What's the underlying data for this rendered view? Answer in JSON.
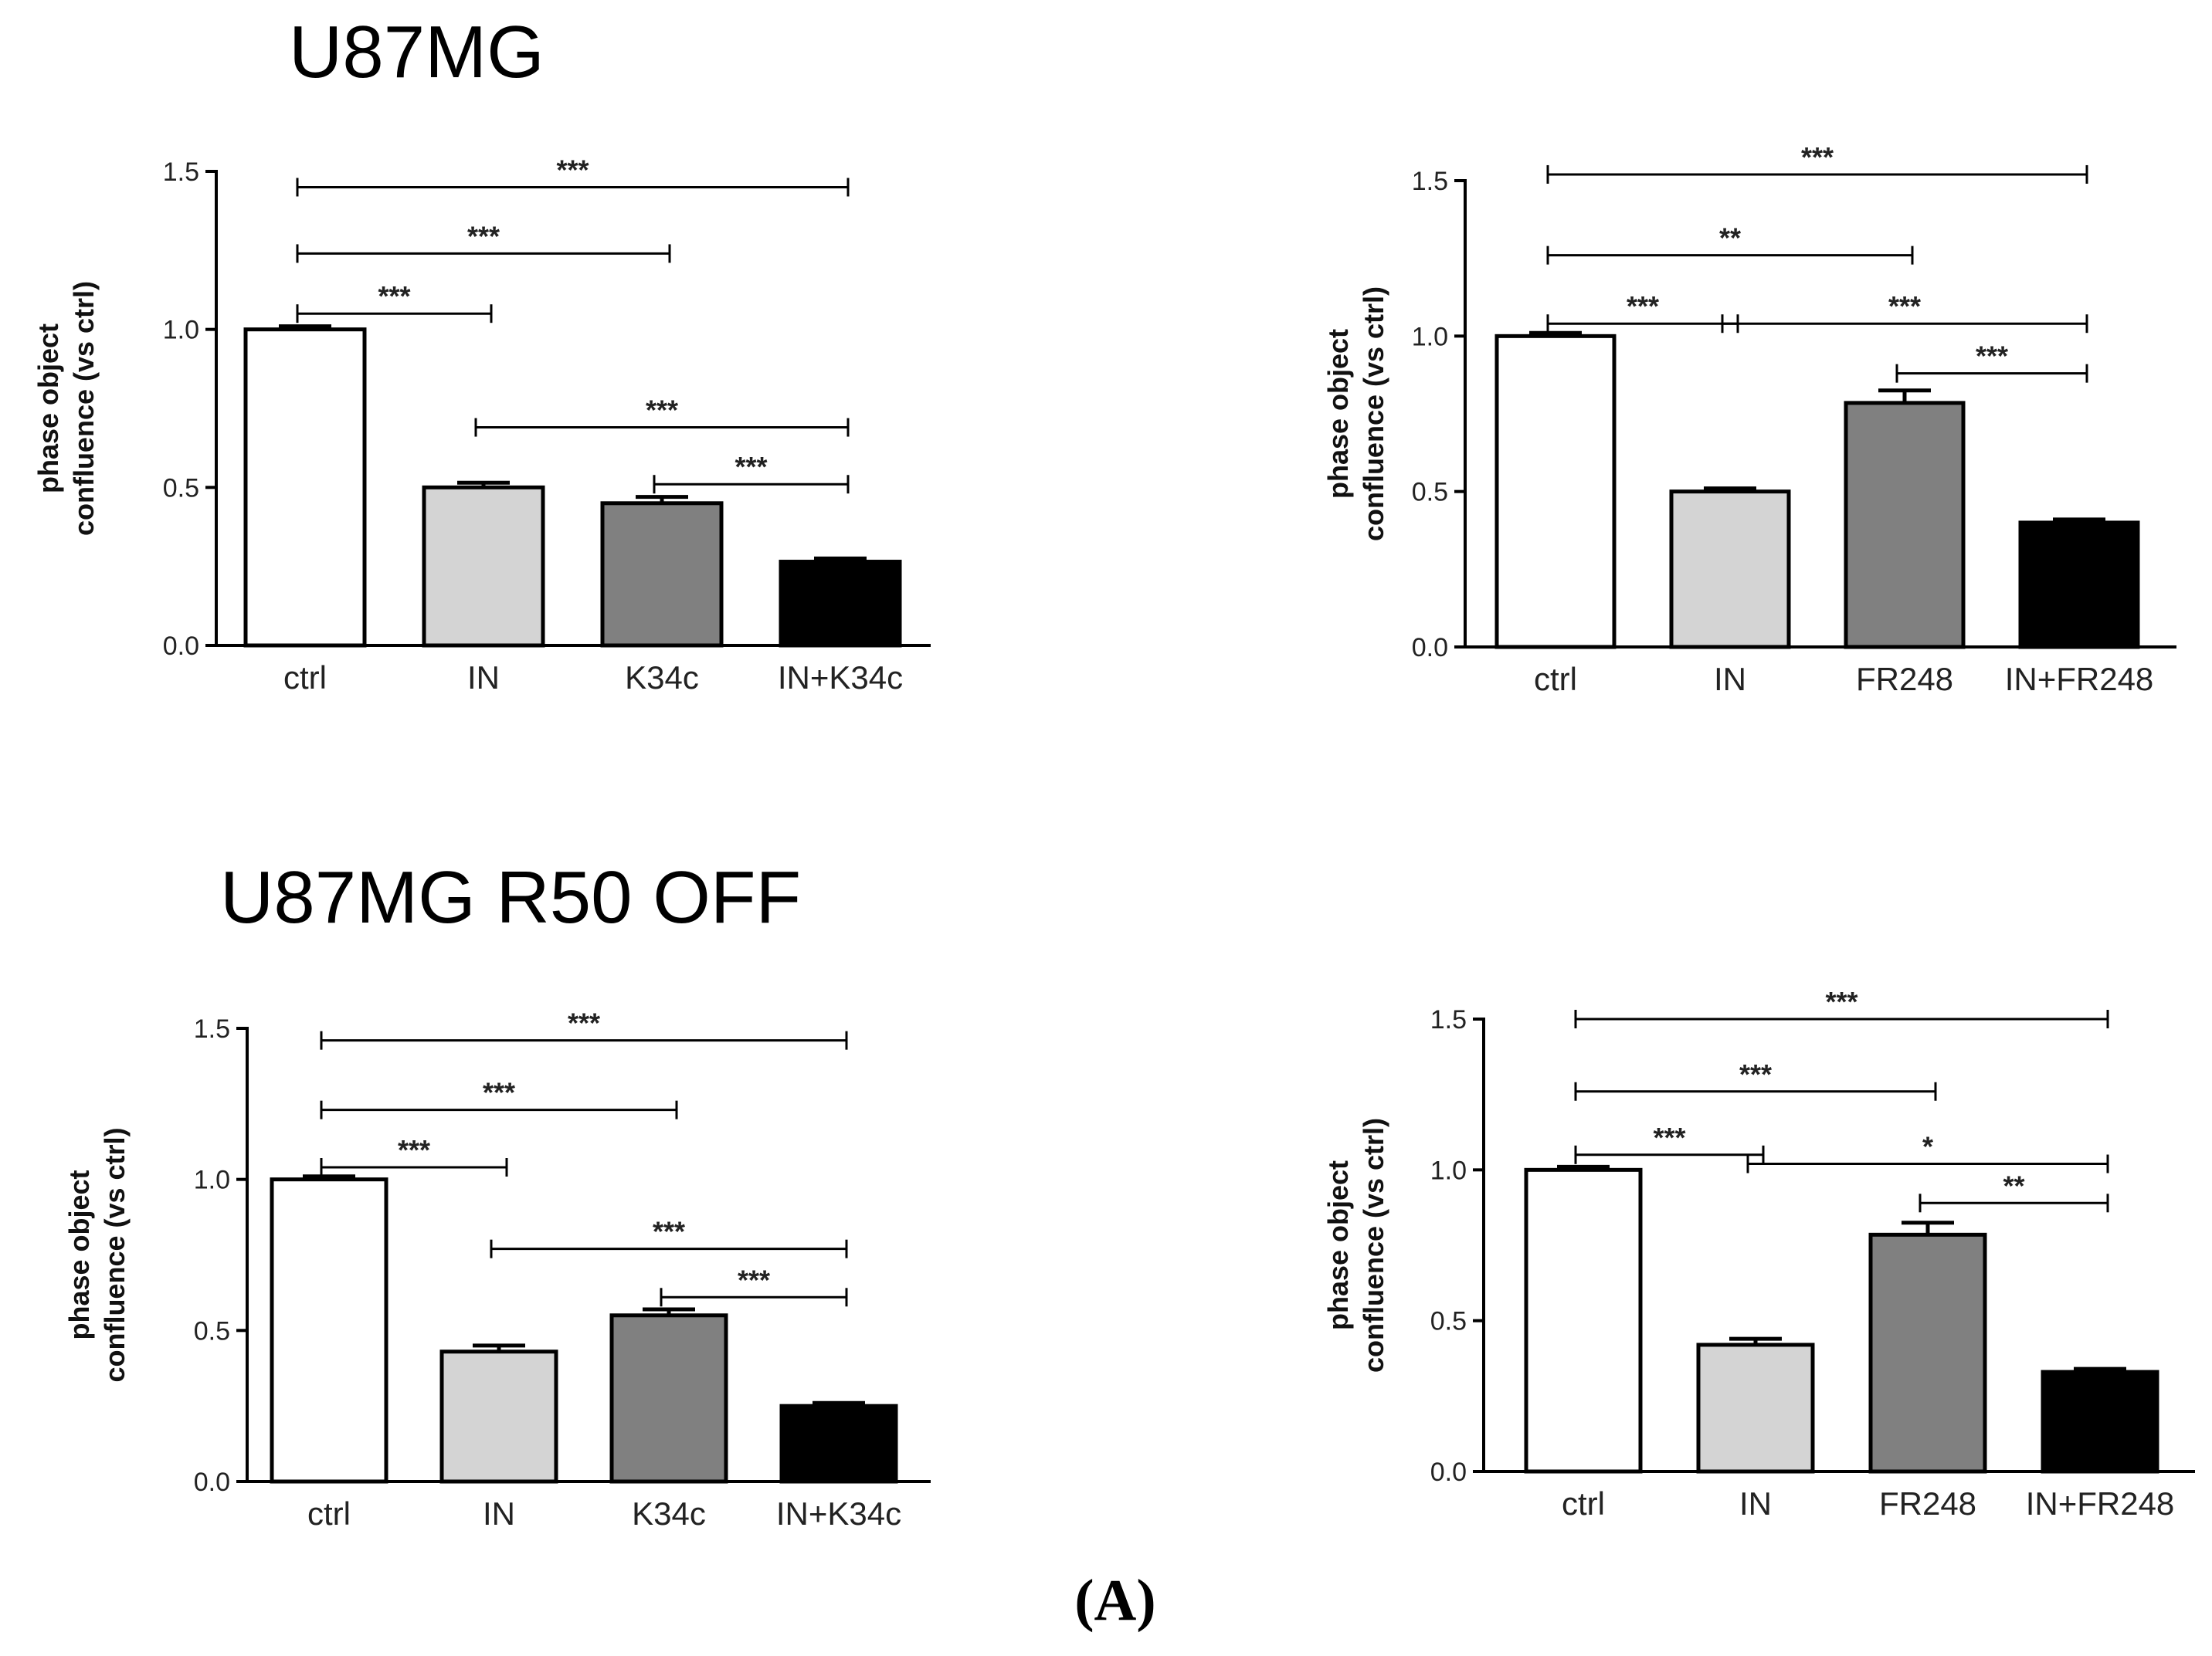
{
  "titles": {
    "top": "U87MG",
    "bottom": "U87MG R50 OFF"
  },
  "panel_label": "(A)",
  "colors": {
    "ctrl": "#ffffff",
    "IN": "#d4d4d4",
    "treat": "#808080",
    "combo": "#000000",
    "stroke": "#000000"
  },
  "chart_data": [
    {
      "type": "bar",
      "name": "U87MG K34c",
      "categories": [
        "ctrl",
        "IN",
        "K34c",
        "IN+K34c"
      ],
      "values": [
        1.0,
        0.5,
        0.45,
        0.265
      ],
      "errors": [
        0.01,
        0.015,
        0.02,
        0.01
      ],
      "ylabel": [
        "phase object",
        "confluence (vs ctrl)"
      ],
      "ylim": [
        0,
        1.5
      ],
      "yticks": [
        "0.0",
        "0.5",
        "1.0",
        "1.5"
      ],
      "significance": [
        {
          "from": 0,
          "to": 3,
          "y": 1.45,
          "label": "***"
        },
        {
          "from": 0,
          "to": 2,
          "y": 1.24,
          "label": "***"
        },
        {
          "from": 0,
          "to": 1,
          "y": 1.05,
          "label": "***"
        },
        {
          "from": 1,
          "to": 3,
          "y": 0.69,
          "label": "***"
        },
        {
          "from": 2,
          "to": 3,
          "y": 0.51,
          "label": "***"
        }
      ]
    },
    {
      "type": "bar",
      "name": "U87MG FR248",
      "categories": [
        "ctrl",
        "IN",
        "FR248",
        "IN+FR248"
      ],
      "values": [
        1.0,
        0.5,
        0.785,
        0.4
      ],
      "errors": [
        0.01,
        0.01,
        0.04,
        0.01
      ],
      "ylabel": [
        "phase object",
        "confluence (vs ctrl)"
      ],
      "ylim": [
        0,
        1.5
      ],
      "yticks": [
        "0.0",
        "0.5",
        "1.0",
        "1.5"
      ],
      "significance": [
        {
          "from": 0,
          "to": 3,
          "y": 1.52,
          "label": "***"
        },
        {
          "from": 0,
          "to": 2,
          "y": 1.26,
          "label": "**"
        },
        {
          "from": 0,
          "to": 1,
          "y": 1.04,
          "label": "***"
        },
        {
          "from": 1,
          "to": 3,
          "y": 1.04,
          "label": "***"
        },
        {
          "from": 2,
          "to": 3,
          "y": 0.88,
          "label": "***"
        }
      ]
    },
    {
      "type": "bar",
      "name": "U87MG R50 OFF K34c",
      "categories": [
        "ctrl",
        "IN",
        "K34c",
        "IN+K34c"
      ],
      "values": [
        1.0,
        0.43,
        0.55,
        0.25
      ],
      "errors": [
        0.01,
        0.02,
        0.02,
        0.01
      ],
      "ylabel": [
        "phase object",
        "confluence (vs ctrl)"
      ],
      "ylim": [
        0,
        1.5
      ],
      "yticks": [
        "0.0",
        "0.5",
        "1.0",
        "1.5"
      ],
      "significance": [
        {
          "from": 0,
          "to": 3,
          "y": 1.46,
          "label": "***"
        },
        {
          "from": 0,
          "to": 2,
          "y": 1.23,
          "label": "***"
        },
        {
          "from": 0,
          "to": 1,
          "y": 1.04,
          "label": "***"
        },
        {
          "from": 1,
          "to": 3,
          "y": 0.77,
          "label": "***"
        },
        {
          "from": 2,
          "to": 3,
          "y": 0.61,
          "label": "***"
        }
      ]
    },
    {
      "type": "bar",
      "name": "U87MG R50 OFF FR248",
      "categories": [
        "ctrl",
        "IN",
        "FR248",
        "IN+FR248"
      ],
      "values": [
        1.0,
        0.42,
        0.785,
        0.33
      ],
      "errors": [
        0.01,
        0.02,
        0.04,
        0.01
      ],
      "ylabel": [
        "phase object",
        "confluence (vs ctrl)"
      ],
      "ylim": [
        0,
        1.5
      ],
      "yticks": [
        "0.0",
        "0.5",
        "1.0",
        "1.5"
      ],
      "significance": [
        {
          "from": 0,
          "to": 3,
          "y": 1.5,
          "label": "***"
        },
        {
          "from": 0,
          "to": 2,
          "y": 1.26,
          "label": "***"
        },
        {
          "from": 0,
          "to": 1,
          "y": 1.05,
          "label": "***"
        },
        {
          "from": 1,
          "to": 3,
          "y": 1.02,
          "label": "*"
        },
        {
          "from": 2,
          "to": 3,
          "y": 0.89,
          "label": "**"
        }
      ]
    }
  ]
}
